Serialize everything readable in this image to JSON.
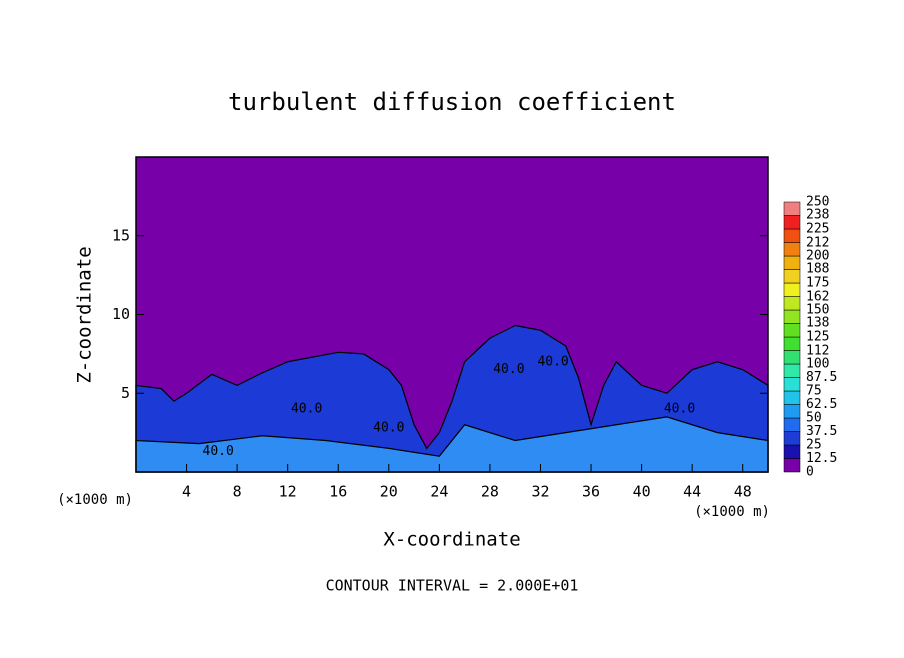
{
  "chart_data": {
    "type": "contour",
    "title": "turbulent diffusion coefficient",
    "xlabel": "X-coordinate",
    "ylabel": "Z-coordinate",
    "x_unit_left": "(×1000 m)",
    "x_unit_right": "(×1000 m)",
    "footer": "CONTOUR INTERVAL = 2.000E+01",
    "xlim": [
      0,
      50
    ],
    "xticks": [
      4,
      8,
      12,
      16,
      20,
      24,
      28,
      32,
      36,
      40,
      44,
      48
    ],
    "ylim": [
      0,
      20
    ],
    "yticks": [
      5,
      10,
      15
    ],
    "background": "#7800a8",
    "layers": [
      {
        "color": "#1c3ad6",
        "x": [
          0,
          2,
          3,
          4,
          6,
          8,
          10,
          12,
          14,
          16,
          18,
          20,
          21,
          22,
          23,
          24,
          25,
          26,
          28,
          30,
          32,
          34,
          35,
          36,
          37,
          38,
          40,
          42,
          44,
          46,
          48,
          50
        ],
        "z": [
          5.5,
          5.3,
          4.5,
          5.0,
          6.2,
          5.5,
          6.3,
          7.0,
          7.3,
          7.6,
          7.5,
          6.5,
          5.5,
          3,
          1.5,
          2.5,
          4.5,
          7,
          8.5,
          9.3,
          9.0,
          8.0,
          6,
          3,
          5.5,
          7.0,
          5.5,
          5.0,
          6.5,
          7.0,
          6.5,
          5.5
        ]
      },
      {
        "color": "#2f8cf2",
        "x": [
          0,
          5,
          10,
          15,
          20,
          24,
          26,
          30,
          34,
          38,
          42,
          46,
          50
        ],
        "z": [
          2,
          1.8,
          2.3,
          2.0,
          1.5,
          1,
          3,
          2,
          2.5,
          3,
          3.5,
          2.5,
          2
        ]
      }
    ],
    "contour_labels": [
      {
        "text": "40.0",
        "x": 6.5,
        "z": 1.3
      },
      {
        "text": "40.0",
        "x": 13.5,
        "z": 4
      },
      {
        "text": "40.0",
        "x": 20,
        "z": 2.8
      },
      {
        "text": "40.0",
        "x": 29.5,
        "z": 6.5
      },
      {
        "text": "40.0",
        "x": 33,
        "z": 7
      },
      {
        "text": "40.0",
        "x": 43,
        "z": 4
      }
    ],
    "colorbar": {
      "lim": [
        0,
        250
      ],
      "ticks": [
        0,
        12.5,
        25,
        37.5,
        50,
        62.5,
        75,
        87.5,
        100,
        112,
        125,
        138,
        150,
        162,
        175,
        188,
        200,
        212,
        225,
        238,
        250
      ],
      "colors": [
        "#7800a8",
        "#1a10b0",
        "#1e3cd6",
        "#1f6cf0",
        "#1e9cf2",
        "#20c4ea",
        "#28e0d8",
        "#30e8a8",
        "#30e070",
        "#40e030",
        "#60e020",
        "#90e420",
        "#c0e820",
        "#f0f020",
        "#f0d020",
        "#f0b010",
        "#f08010",
        "#f05010",
        "#f02020",
        "#f08080"
      ]
    }
  }
}
